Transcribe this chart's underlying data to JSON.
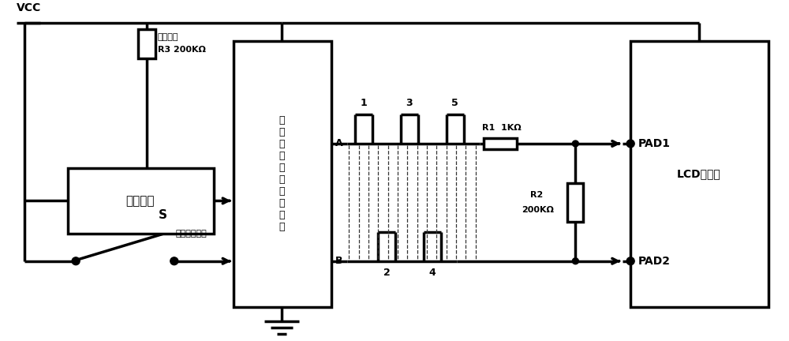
{
  "bg_color": "#ffffff",
  "line_color": "#000000",
  "lw": 1.8,
  "lw2": 2.5,
  "fig_width": 10.0,
  "fig_height": 4.32,
  "dpi": 100,
  "vcc_label": "VCC",
  "r3_label1": "升压设置",
  "r3_label2": "R3 200KΩ",
  "boost_label": "升压电路",
  "switch_label1": "S",
  "switch_label2": "擦除按钮开关",
  "control_label": "图\n像\n擦\n除\n指\n令\n控\n制\n电\n路",
  "pad1_label": "PAD1",
  "pad2_label": "PAD2",
  "lcd_label": "LCD液晶屏",
  "r1_label1": "R1  1KΩ",
  "r2_label1": "R2",
  "r2_label2": "200KΩ",
  "a_label": "A",
  "b_label": "B",
  "pulse_labels_top": [
    "1",
    "3",
    "5"
  ],
  "pulse_labels_bot": [
    "2",
    "4"
  ]
}
